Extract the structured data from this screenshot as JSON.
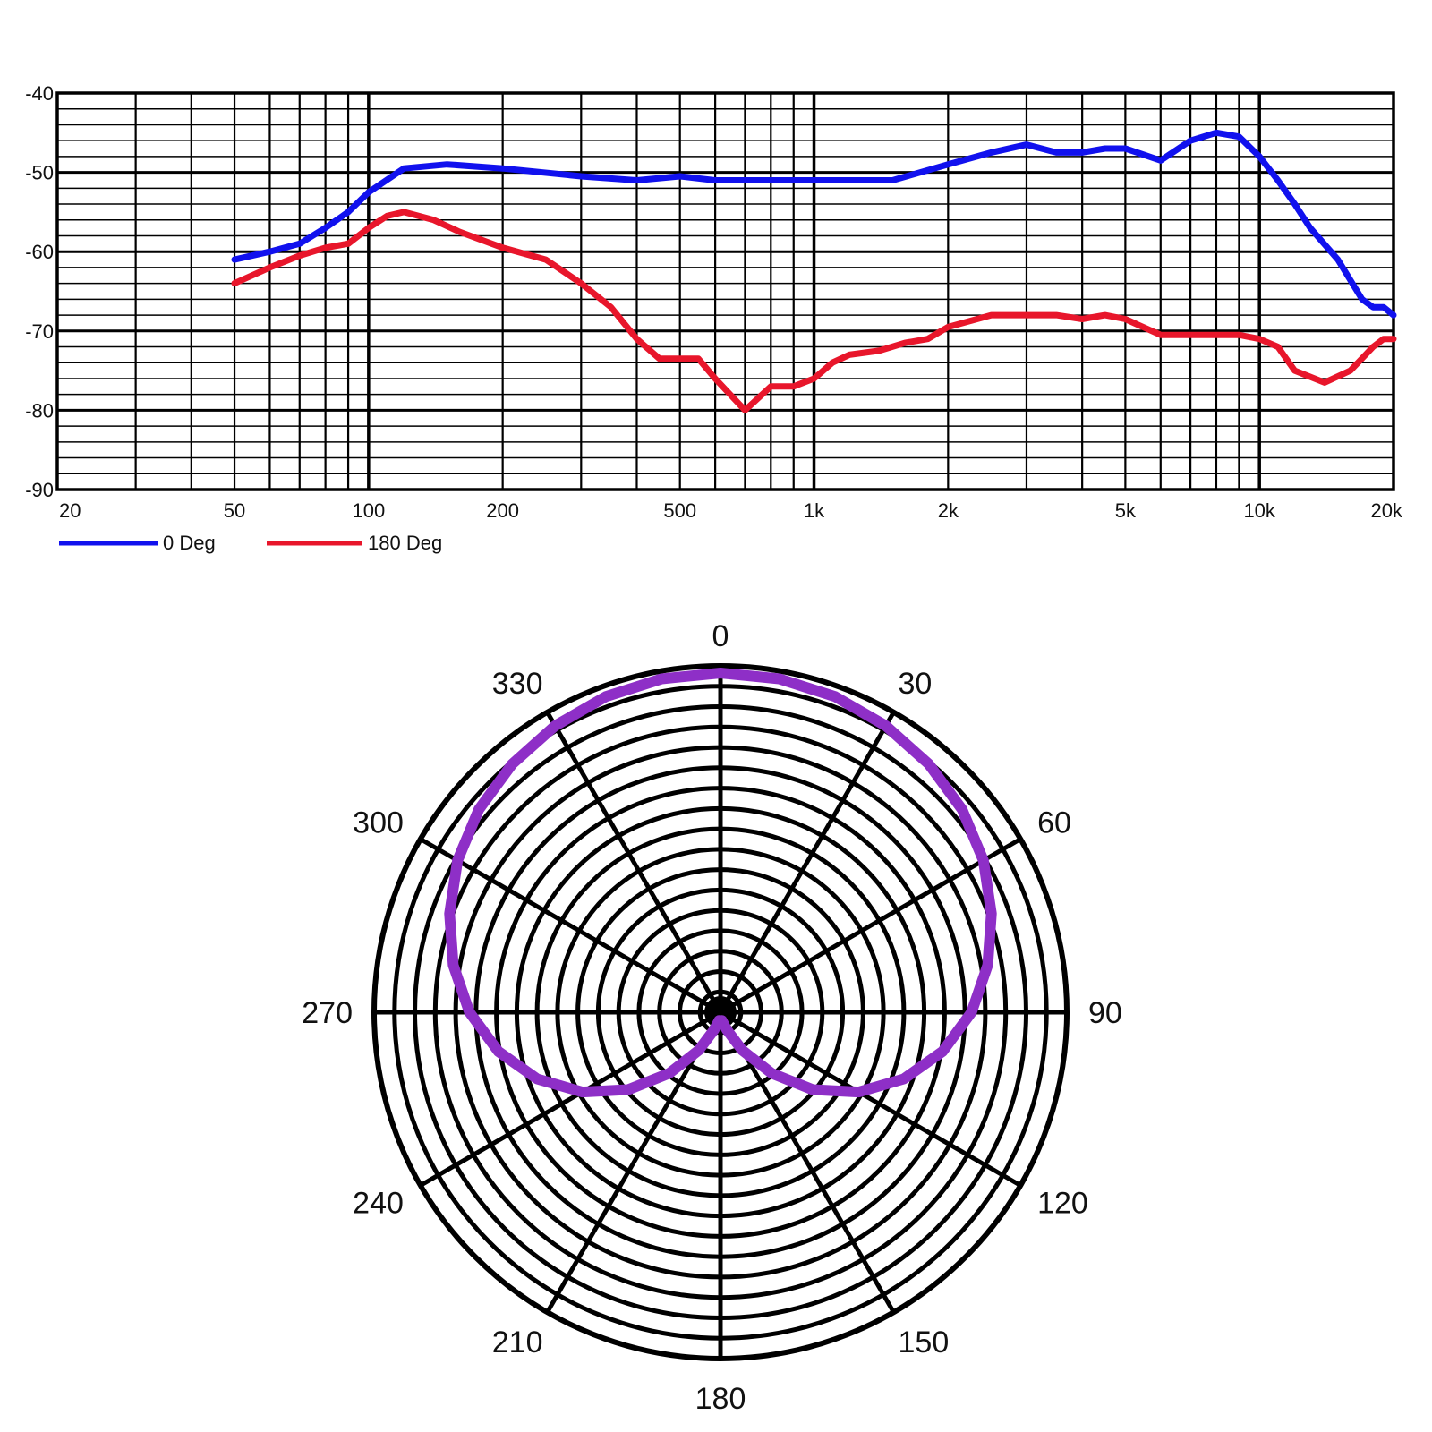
{
  "chart_data": [
    {
      "type": "line",
      "x_scale": "log",
      "xlim": [
        20,
        20000
      ],
      "ylim": [
        -90,
        -40
      ],
      "grid": true,
      "x_tick_values": [
        20,
        50,
        100,
        200,
        500,
        1000,
        2000,
        5000,
        10000,
        20000
      ],
      "x_tick_labels": [
        "20",
        "50",
        "100",
        "200",
        "500",
        "1k",
        "2k",
        "5k",
        "10k",
        "20k"
      ],
      "y_tick_values": [
        -40,
        -50,
        -60,
        -70,
        -80,
        -90
      ],
      "y_tick_labels": [
        "-40",
        "-50",
        "-60",
        "-70",
        "-80",
        "-90"
      ],
      "legend_position": "bottom-left",
      "series": [
        {
          "name": "0 Deg",
          "color": "#1111ee",
          "x": [
            50,
            60,
            70,
            80,
            90,
            100,
            120,
            150,
            200,
            300,
            400,
            500,
            600,
            700,
            800,
            1000,
            1500,
            2000,
            2500,
            3000,
            3500,
            4000,
            4500,
            5000,
            6000,
            7000,
            8000,
            9000,
            10000,
            11000,
            12000,
            13000,
            15000,
            17000,
            18000,
            19000,
            20000
          ],
          "y": [
            -61,
            -60,
            -59,
            -57,
            -55,
            -52.5,
            -49.5,
            -49,
            -49.5,
            -50.5,
            -51,
            -50.5,
            -51,
            -51,
            -51,
            -51,
            -51,
            -49,
            -47.5,
            -46.5,
            -47.5,
            -47.5,
            -47,
            -47,
            -48.5,
            -46,
            -45,
            -45.5,
            -48,
            -51,
            -54,
            -57,
            -61,
            -66,
            -67,
            -67,
            -68
          ]
        },
        {
          "name": "180 Deg",
          "color": "#e8162b",
          "x": [
            50,
            60,
            70,
            80,
            90,
            100,
            110,
            120,
            140,
            160,
            200,
            250,
            300,
            350,
            400,
            450,
            500,
            550,
            600,
            700,
            800,
            900,
            1000,
            1100,
            1200,
            1400,
            1600,
            1800,
            2000,
            2500,
            3000,
            3500,
            4000,
            4500,
            5000,
            6000,
            7000,
            8000,
            9000,
            10000,
            11000,
            12000,
            14000,
            16000,
            18000,
            19000,
            20000
          ],
          "y": [
            -64,
            -62,
            -60.5,
            -59.5,
            -59,
            -57,
            -55.5,
            -55,
            -56,
            -57.5,
            -59.5,
            -61,
            -64,
            -67,
            -71,
            -73.5,
            -73.5,
            -73.5,
            -76,
            -80,
            -77,
            -77,
            -76,
            -74,
            -73,
            -72.5,
            -71.5,
            -71,
            -69.5,
            -68,
            -68,
            -68,
            -68.5,
            -68,
            -68.5,
            -70.5,
            -70.5,
            -70.5,
            -70.5,
            -71,
            -72,
            -75,
            -76.5,
            -75,
            -72,
            -71,
            -71
          ]
        }
      ]
    },
    {
      "type": "polar",
      "angle_tick_labels": [
        "0",
        "30",
        "60",
        "90",
        "120",
        "150",
        "180",
        "210",
        "240",
        "270",
        "300",
        "330"
      ],
      "angle_tick_values": [
        0,
        30,
        60,
        90,
        120,
        150,
        180,
        210,
        240,
        270,
        300,
        330
      ],
      "angle_direction": "clockwise",
      "zero_angle": "top",
      "grid": true,
      "series": [
        {
          "name": "",
          "color": "#8e2fc7",
          "theta": [
            0,
            10,
            20,
            30,
            40,
            50,
            60,
            70,
            80,
            90,
            100,
            110,
            120,
            130,
            140,
            150,
            160,
            170,
            180
          ],
          "r": [
            1.0,
            0.998,
            0.99,
            0.975,
            0.955,
            0.93,
            0.895,
            0.85,
            0.8,
            0.74,
            0.665,
            0.575,
            0.47,
            0.355,
            0.235,
            0.13,
            0.055,
            0.025,
            0.03
          ]
        }
      ]
    }
  ],
  "legend": {
    "items": [
      {
        "label": "0 Deg",
        "color": "#1111ee"
      },
      {
        "label": "180 Deg",
        "color": "#e8162b"
      }
    ]
  }
}
